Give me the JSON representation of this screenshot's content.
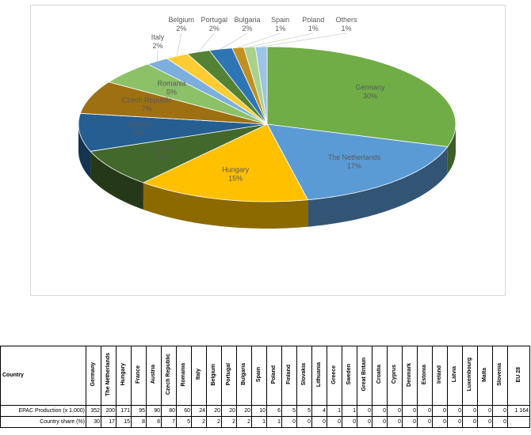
{
  "chart_data": {
    "type": "pie",
    "title": "",
    "slices": [
      {
        "label": "Germany",
        "percent": "30%",
        "value": 30,
        "color": "#70ad47"
      },
      {
        "label": "The Netherlands",
        "percent": "17%",
        "value": 17,
        "color": "#5b9bd5"
      },
      {
        "label": "Hungary",
        "percent": "15%",
        "value": 15,
        "color": "#ffc000"
      },
      {
        "label": "France",
        "percent": "8%",
        "value": 8,
        "color": "#43682b"
      },
      {
        "label": "Austria",
        "percent": "8%",
        "value": 8,
        "color": "#255e91"
      },
      {
        "label": "Czech Republic",
        "percent": "7%",
        "value": 7,
        "color": "#9e7011"
      },
      {
        "label": "Romania",
        "percent": "5%",
        "value": 5,
        "color": "#8cc168"
      },
      {
        "label": "Italy",
        "percent": "2%",
        "value": 2,
        "color": "#7cafdd"
      },
      {
        "label": "Belgium",
        "percent": "2%",
        "value": 2,
        "color": "#ffcd33"
      },
      {
        "label": "Portugal",
        "percent": "2%",
        "value": 2,
        "color": "#548235"
      },
      {
        "label": "Bulgaria",
        "percent": "2%",
        "value": 2,
        "color": "#2e75b6"
      },
      {
        "label": "Spain",
        "percent": "1%",
        "value": 1,
        "color": "#c09020"
      },
      {
        "label": "Poland",
        "percent": "1%",
        "value": 1,
        "color": "#a9d18e"
      },
      {
        "label": "Others",
        "percent": "1%",
        "value": 1,
        "color": "#9dc3e6"
      }
    ]
  },
  "table": {
    "header_label": "Country",
    "countries": [
      "Germany",
      "The Netherlands",
      "Hungary",
      "France",
      "Austria",
      "Czech Republic",
      "Romania",
      "Italy",
      "Belgium",
      "Portugal",
      "Bulgaria",
      "Spain",
      "Poland",
      "Finland",
      "Slovakia",
      "Lithuania",
      "Greece",
      "Sweden",
      "Great Britain",
      "Croatia",
      "Cyprus",
      "Denmark",
      "Estonia",
      "Ireland",
      "Latvia",
      "Luxembourg",
      "Malta",
      "Slovenia",
      "EU 28"
    ],
    "rows": [
      {
        "label": "EPAC Production (x 1,000)",
        "values": [
          "352",
          "200",
          "171",
          "95",
          "90",
          "80",
          "60",
          "24",
          "20",
          "20",
          "20",
          "10",
          "6",
          "5",
          "5",
          "4",
          "1",
          "1",
          "0",
          "0",
          "0",
          "0",
          "0",
          "0",
          "0",
          "0",
          "0",
          "0",
          "1 164"
        ]
      },
      {
        "label": "Country share (%)",
        "values": [
          "30",
          "17",
          "15",
          "8",
          "8",
          "7",
          "5",
          "2",
          "2",
          "2",
          "2",
          "1",
          "1",
          "0",
          "0",
          "0",
          "0",
          "0",
          "0",
          "0",
          "0",
          "0",
          "0",
          "0",
          "0",
          "0",
          "0",
          "0",
          ""
        ]
      }
    ]
  }
}
